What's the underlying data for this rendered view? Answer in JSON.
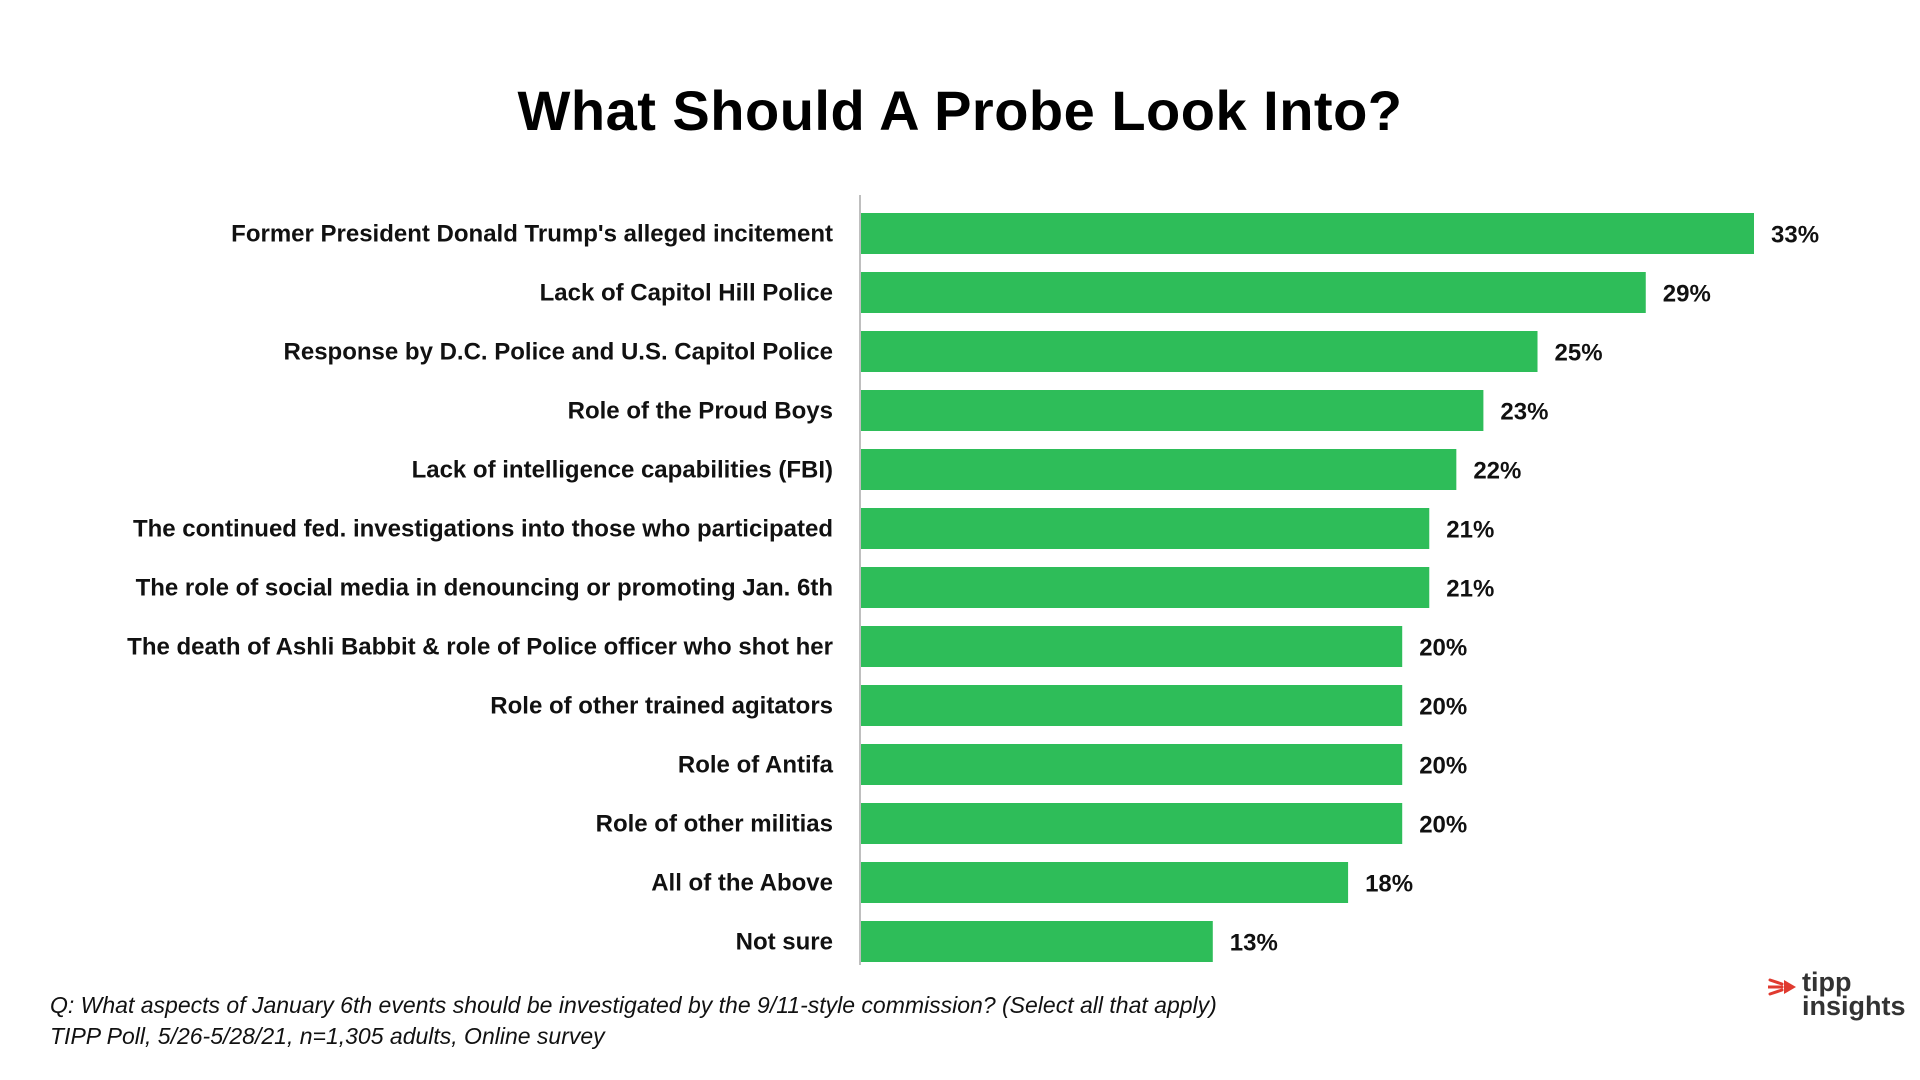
{
  "chart_data": {
    "type": "bar",
    "orientation": "horizontal",
    "title": "What Should A Probe Look Into?",
    "categories": [
      "Former President Donald Trump's alleged incitement",
      "Lack of Capitol Hill Police",
      "Response by D.C. Police and U.S. Capitol Police",
      "Role of the Proud Boys",
      "Lack of intelligence capabilities (FBI)",
      "The continued fed. investigations into those who participated",
      "The role of social media in denouncing or promoting Jan. 6th",
      "The death of Ashli Babbit & role of Police officer who shot her",
      "Role of other trained agitators",
      "Role of Antifa",
      "Role of other militias",
      "All of the Above",
      "Not sure"
    ],
    "values": [
      33,
      29,
      25,
      23,
      22,
      21,
      21,
      20,
      20,
      20,
      20,
      18,
      13
    ],
    "value_labels": [
      "33%",
      "29%",
      "25%",
      "23%",
      "22%",
      "21%",
      "21%",
      "20%",
      "20%",
      "20%",
      "20%",
      "18%",
      "13%"
    ],
    "bar_color": "#2ebd59",
    "xlim": [
      0,
      33
    ],
    "grid": false,
    "legend": "none"
  },
  "footnote": {
    "question": "Q:   What aspects of January 6th events should be investigated by the 9/11-style commission? (Select all that apply)",
    "source": "TIPP Poll, 5/26-5/28/21, n=1,305 adults, Online survey"
  },
  "logo": {
    "line1": "tipp",
    "line2": "insights",
    "accent_color": "#e03a2f"
  }
}
